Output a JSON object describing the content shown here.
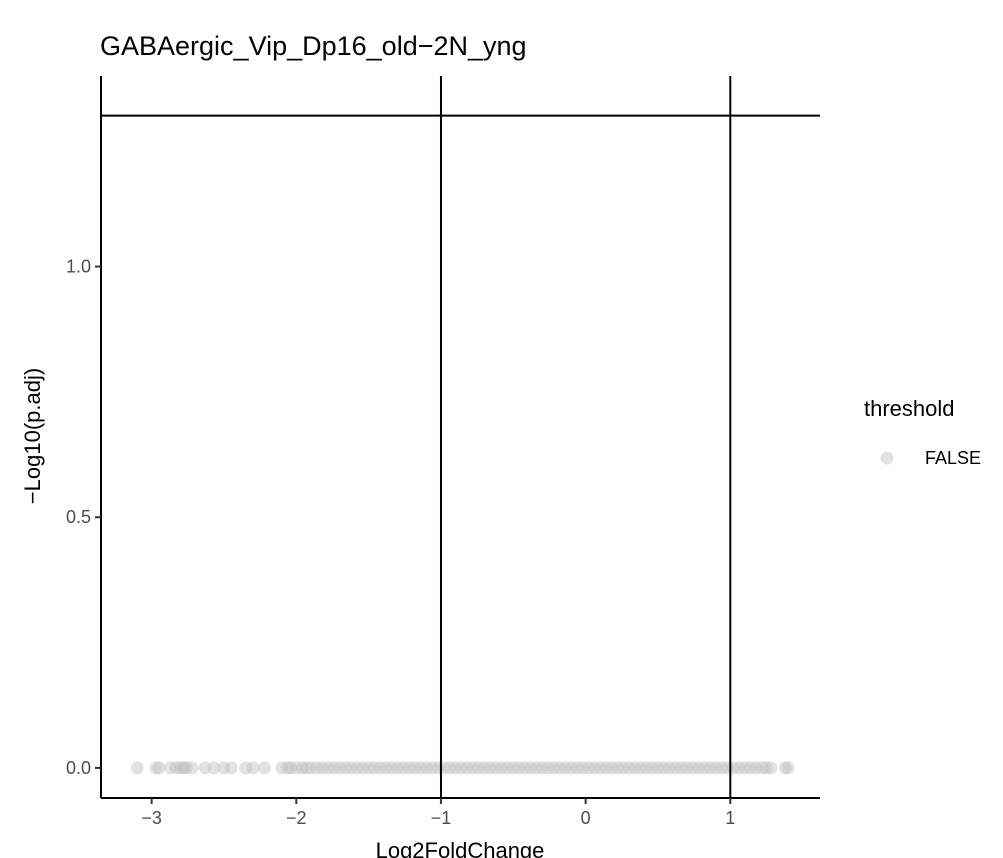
{
  "chart_data": {
    "type": "scatter",
    "title": "GABAergic_Vip_Dp16_old−2N_yng",
    "xlabel": "Log2FoldChange",
    "ylabel": "−Log10(p.adj)",
    "xlim": [
      -3.35,
      1.62
    ],
    "ylim": [
      -0.06,
      1.38
    ],
    "x_ticks": [
      {
        "value": -3,
        "label": "−3"
      },
      {
        "value": -2,
        "label": "−2"
      },
      {
        "value": -1,
        "label": "−1"
      },
      {
        "value": 0,
        "label": "0"
      },
      {
        "value": 1,
        "label": "1"
      }
    ],
    "y_ticks": [
      {
        "value": 0,
        "label": "0.0"
      },
      {
        "value": 0.5,
        "label": "0.5"
      },
      {
        "value": 1,
        "label": "1.0"
      }
    ],
    "reference_lines": {
      "vertical": [
        -1,
        1
      ],
      "horizontal": [
        1.301
      ]
    },
    "grid": false,
    "legend": {
      "title": "threshold",
      "placement": "right",
      "entries": [
        {
          "label": "FALSE",
          "color": "#bebebe"
        }
      ]
    },
    "series": [
      {
        "name": "FALSE",
        "color": "#bebebe",
        "x": [
          -3.1,
          -2.97,
          -2.95,
          -2.87,
          -2.83,
          -2.8,
          -2.78,
          -2.76,
          -2.72,
          -2.63,
          -2.57,
          -2.5,
          -2.45,
          -2.35,
          -2.3,
          -2.22,
          -2.1,
          -2.06,
          -2.04,
          -2.0,
          -1.96,
          -1.93,
          -1.9,
          -1.86,
          -1.82,
          -1.78,
          -1.74,
          -1.7,
          -1.66,
          -1.62,
          -1.58,
          -1.54,
          -1.5,
          -1.46,
          -1.42,
          -1.38,
          -1.34,
          -1.3,
          -1.26,
          -1.22,
          -1.18,
          -1.14,
          -1.1,
          -1.06,
          -1.02,
          -0.98,
          -0.94,
          -0.9,
          -0.86,
          -0.82,
          -0.78,
          -0.74,
          -0.7,
          -0.66,
          -0.62,
          -0.58,
          -0.54,
          -0.5,
          -0.46,
          -0.42,
          -0.38,
          -0.34,
          -0.3,
          -0.26,
          -0.22,
          -0.18,
          -0.14,
          -0.1,
          -0.06,
          -0.02,
          0.02,
          0.06,
          0.1,
          0.14,
          0.18,
          0.22,
          0.26,
          0.3,
          0.34,
          0.38,
          0.42,
          0.46,
          0.5,
          0.54,
          0.58,
          0.62,
          0.66,
          0.7,
          0.74,
          0.78,
          0.82,
          0.86,
          0.9,
          0.94,
          0.98,
          1.02,
          1.06,
          1.1,
          1.14,
          1.18,
          1.22,
          1.25,
          1.28,
          1.38,
          1.4
        ],
        "y": [
          0,
          0,
          0,
          0,
          0,
          0,
          0,
          0,
          0,
          0,
          0,
          0,
          0,
          0,
          0,
          0,
          0,
          0,
          0,
          0,
          0,
          0,
          0,
          0,
          0,
          0,
          0,
          0,
          0,
          0,
          0,
          0,
          0,
          0,
          0,
          0,
          0,
          0,
          0,
          0,
          0,
          0,
          0,
          0,
          0,
          0,
          0,
          0,
          0,
          0,
          0,
          0,
          0,
          0,
          0,
          0,
          0,
          0,
          0,
          0,
          0,
          0,
          0,
          0,
          0,
          0,
          0,
          0,
          0,
          0,
          0,
          0,
          0,
          0,
          0,
          0,
          0,
          0,
          0,
          0,
          0,
          0,
          0,
          0,
          0,
          0,
          0,
          0,
          0,
          0,
          0,
          0,
          0,
          0,
          0,
          0,
          0,
          0,
          0,
          0,
          0,
          0,
          0,
          0,
          0
        ]
      }
    ]
  }
}
